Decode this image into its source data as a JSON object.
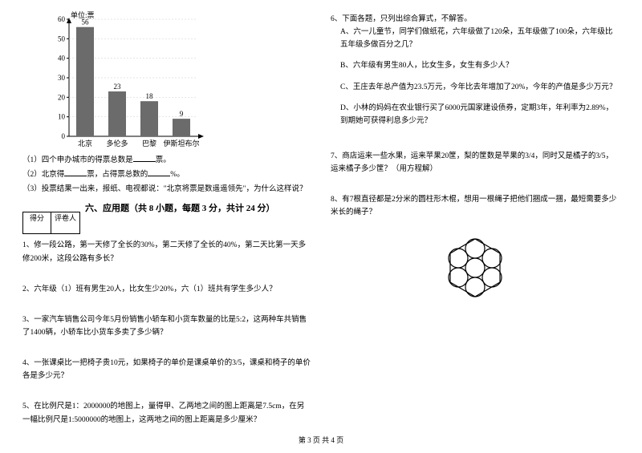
{
  "chart": {
    "unit_label": "单位:票",
    "ylim": [
      0,
      60
    ],
    "ytick_step": 10,
    "yticks": [
      0,
      10,
      20,
      30,
      40,
      50,
      60
    ],
    "categories": [
      "北京",
      "多伦多",
      "巴黎",
      "伊斯坦布尔"
    ],
    "values": [
      56,
      23,
      18,
      9
    ],
    "bar_color": "#6b6b6b",
    "axis_color": "#000000",
    "background": "#ffffff",
    "bar_width": 0.55,
    "font_size": 9
  },
  "chart_questions": {
    "q1": "（1）四个申办城市的得票总数是______票。",
    "q2_a": "（2）北京得______票，占得票总数的______%。",
    "q3": "（3）投票结果一出来，报纸、电视都说：\"北京将票是数遥遥领先\"，为什么这样说？"
  },
  "score": {
    "label1": "得分",
    "label2": "评卷人"
  },
  "section6": {
    "title": "六、应用题（共 8 小题，每题 3 分，共计 24 分）",
    "p1": "1、修一段公路，第一天修了全长的30%，第二天修了全长的40%，第二天比第一天多修200米，这段公路有多长？",
    "p2": "2、六年级（1）班有男生20人，比女生少20%，六（1）班共有学生多少人？",
    "p3": "3、一家汽车销售公司今年5月份销售小轿车和小货车数量的比是5:2，这两种车共销售了1400辆，小轿车比小货车多卖了多少辆？",
    "p4": "4、一张课桌比一把椅子贵10元，如果椅子的单价是课桌单价的3/5，课桌和椅子的单价各是多少元？",
    "p5": "5、在比例尺是1：2000000的地图上，量得甲、乙两地之间的图上距离是7.5cm，在另一幅比例尺是1:5000000的地图上，这两地之间的图上距离是多少厘米？"
  },
  "right": {
    "p6_intro": "6、下面各题，只列出综合算式，不解答。",
    "p6a": "A、六一儿童节，同学们做纸花，六年级做了120朵，五年级做了100朵，六年级比五年级多做百分之几？",
    "p6b": "B、六年级有男生80人，比女生多，女生有多少人？",
    "p6c": "C、王庄去年总产值为23.5万元，今年比去年增加了20%，今年的产值是多少万元？",
    "p6d": "D、小林的妈妈在农业银行买了6000元国家建设债券，定期3年，年利率为2.89%，到期她可获得利息多少元？",
    "p7": "7、商店运来一些水果，运来苹果20筐，梨的筐数是苹果的3/4，同时又是橘子的3/5，运来橘子多少筐？（用方程解）",
    "p8": "8、有7根直径都是2分米的圆柱形木棍，想用一根绳子把他们捆成一捆，最短需要多少米长的绳子？"
  },
  "circles": {
    "stroke": "#000000",
    "fill": "#ffffff",
    "r": 12,
    "centers": [
      [
        45,
        40
      ],
      [
        45,
        16
      ],
      [
        66,
        28
      ],
      [
        66,
        52
      ],
      [
        45,
        64
      ],
      [
        24,
        52
      ],
      [
        24,
        28
      ]
    ]
  },
  "footer": "第 3 页  共 4 页"
}
